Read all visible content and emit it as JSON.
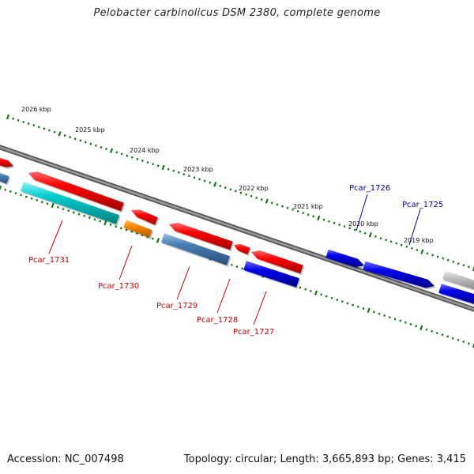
{
  "title": "Pelobacter carbinolicus DSM 2380, complete genome",
  "accession": "Accession: NC_007498",
  "topology": "Topology: circular; Length: 3,665,893 bp; Genes: 3,415",
  "ruler_labels": [
    "2026 kbp",
    "2025 kbp",
    "2024 kbp",
    "2023 kbp",
    "2022 kbp",
    "2021 kbp",
    "2020 kbp",
    "2019 kbp"
  ],
  "gene_labels": [
    {
      "name": "Pcar_1731",
      "color": "#cc0000"
    },
    {
      "name": "Pcar_1730",
      "color": "#cc0000"
    },
    {
      "name": "Pcar_1729",
      "color": "#cc0000"
    },
    {
      "name": "Pcar_1728",
      "color": "#cc0000"
    },
    {
      "name": "Pcar_1727",
      "color": "#cc0000"
    },
    {
      "name": "Pcar_1726",
      "color": "#0000aa"
    },
    {
      "name": "Pcar_1725",
      "color": "#0000aa"
    }
  ],
  "colors": {
    "backbone": "#7a7a7a",
    "tick": "#0a7a0a",
    "red_gene": "#ee0000",
    "blue_gene": "#0000ee",
    "cyan_gene": "#00cccc",
    "orange_gene": "#ff8800",
    "steel_gene": "#4a7fb5",
    "grey_gene": "#bbbbbb"
  }
}
